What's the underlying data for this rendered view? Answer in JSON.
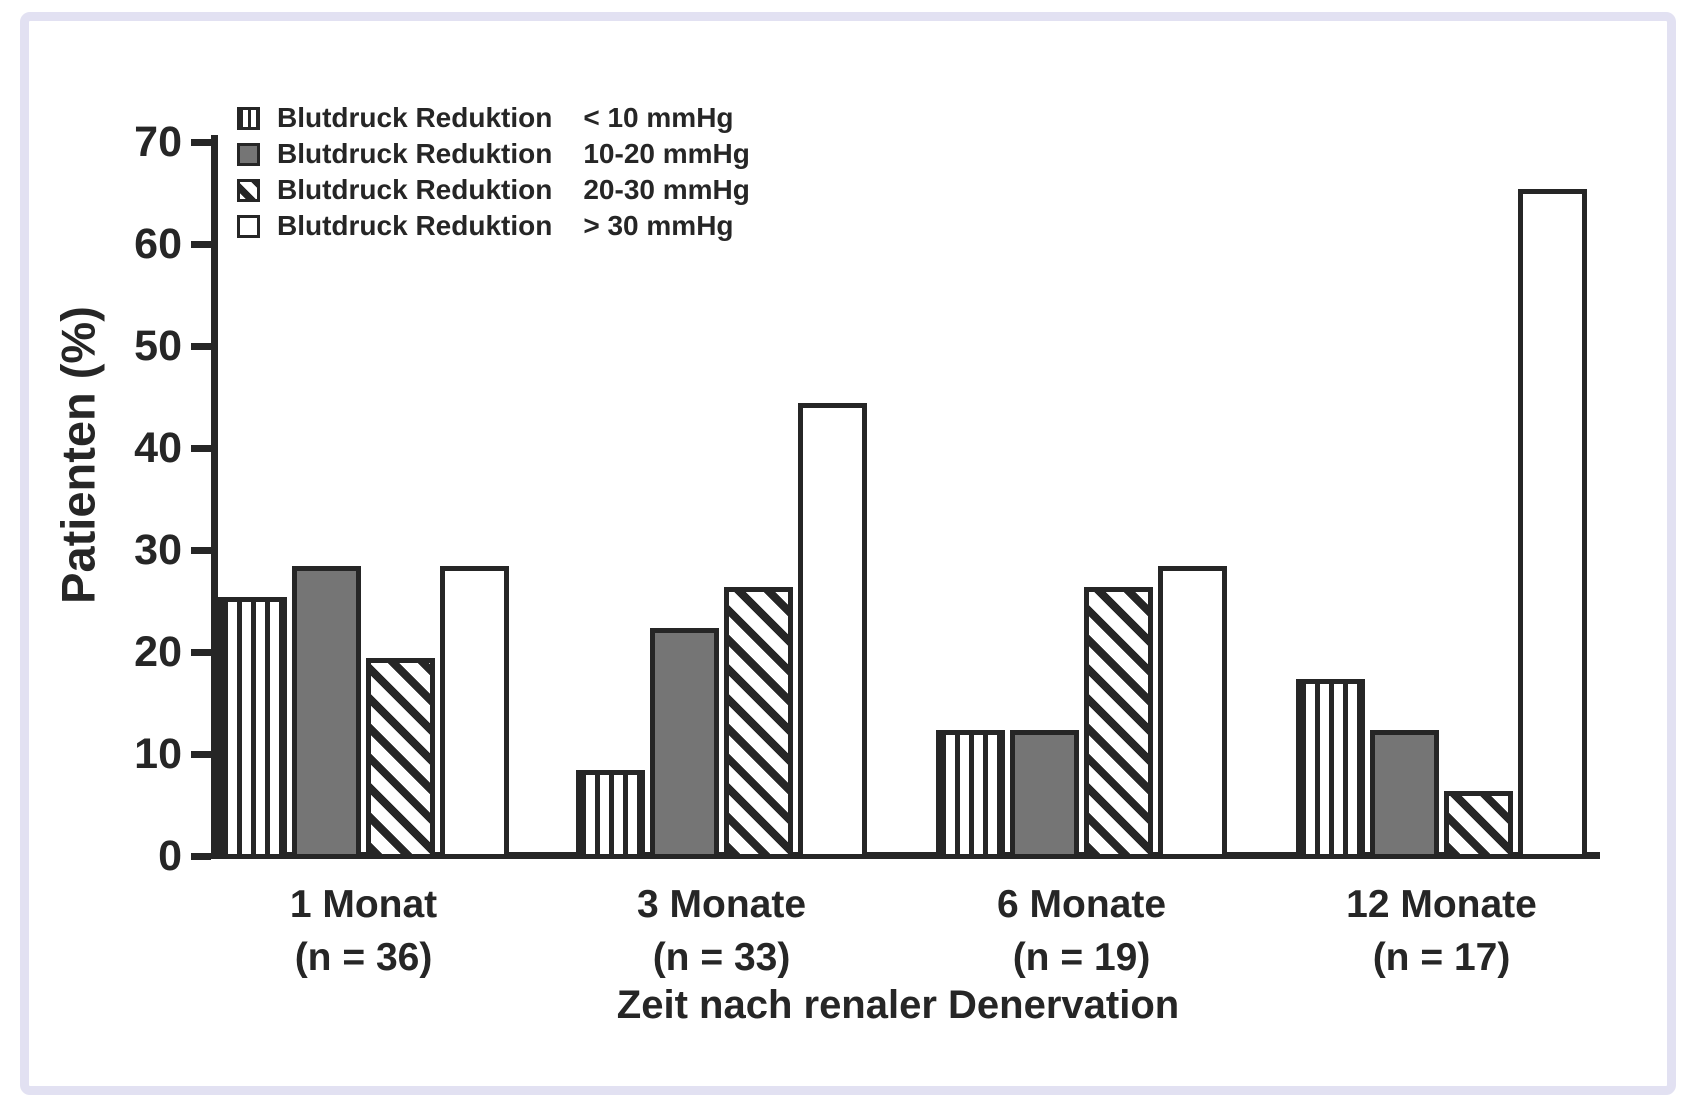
{
  "figure": {
    "background": "#ffffff",
    "frame_border_color": "#e2e1f2",
    "ink_color": "#262626",
    "bar_gray_color": "#757575"
  },
  "chart_data": {
    "type": "bar",
    "title": "",
    "xlabel": "Zeit nach renaler Denervation",
    "ylabel": "Patienten (%)",
    "ylim": [
      0,
      70
    ],
    "yticks": [
      0,
      10,
      20,
      30,
      40,
      50,
      60,
      70
    ],
    "grid": false,
    "legend_position": "top-left-inside",
    "categories": [
      "1 Monat",
      "3 Monate",
      "6 Monate",
      "12 Monate"
    ],
    "category_sublabels": [
      "(n = 36)",
      "(n = 33)",
      "(n = 19)",
      "(n = 17)"
    ],
    "series": [
      {
        "name": "Blutdruck Reduktion",
        "range": "< 10 mmHg",
        "pattern": "vertical-stripes",
        "values": [
          25,
          8,
          12,
          17
        ]
      },
      {
        "name": "Blutdruck Reduktion",
        "range": "10-20 mmHg",
        "pattern": "solid-gray",
        "values": [
          28,
          22,
          12,
          12
        ]
      },
      {
        "name": "Blutdruck Reduktion",
        "range": "20-30 mmHg",
        "pattern": "diagonal-stripes",
        "values": [
          19,
          26,
          26,
          6
        ]
      },
      {
        "name": "Blutdruck Reduktion",
        "range": "> 30 mmHg",
        "pattern": "white",
        "values": [
          28,
          44,
          28,
          65
        ]
      }
    ]
  }
}
